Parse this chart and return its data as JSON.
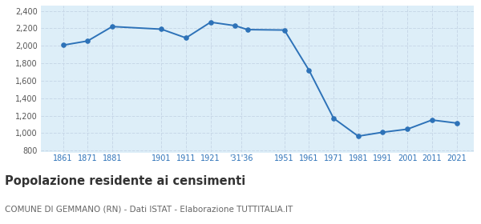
{
  "years": [
    1861,
    1871,
    1881,
    1901,
    1911,
    1921,
    1931,
    1936,
    1951,
    1961,
    1971,
    1981,
    1991,
    2001,
    2011,
    2021
  ],
  "population": [
    2007,
    2055,
    2220,
    2190,
    2090,
    2270,
    2230,
    2185,
    2180,
    1720,
    1170,
    965,
    1010,
    1045,
    1150,
    1115
  ],
  "xtick_positions": [
    1861,
    1871,
    1881,
    1901,
    1911,
    1921,
    1933.5,
    1951,
    1961,
    1971,
    1981,
    1991,
    2001,
    2011,
    2021
  ],
  "xtick_labels": [
    "1861",
    "1871",
    "1881",
    "1901",
    "1911",
    "1921",
    "'31'36",
    "1951",
    "1961",
    "1971",
    "1981",
    "1991",
    "2001",
    "2011",
    "2021"
  ],
  "yticks": [
    800,
    1000,
    1200,
    1400,
    1600,
    1800,
    2000,
    2200,
    2400
  ],
  "ylim": [
    780,
    2460
  ],
  "xlim": [
    1852,
    2028
  ],
  "line_color": "#2d72b8",
  "fill_color": "#ddeef8",
  "marker_color": "#2d72b8",
  "grid_color": "#c8d8e8",
  "bg_color": "#ffffff",
  "title": "Popolazione residente ai censimenti",
  "subtitle": "COMUNE DI GEMMANO (RN) - Dati ISTAT - Elaborazione TUTTITALIA.IT",
  "title_fontsize": 10.5,
  "subtitle_fontsize": 7.5
}
